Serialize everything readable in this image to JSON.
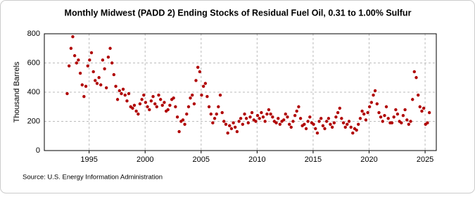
{
  "chart_data": {
    "type": "scatter",
    "title": "Monthly Midwest (PADD 2) Ending Stocks of Residual Fuel Oil, 0.31 to 1.00% Sulfur",
    "y_label": "Thousand Barrels",
    "source": "Source: U.S. Energy Information Administration",
    "color": "#b00000",
    "grid": true,
    "xlim": [
      1991,
      2026
    ],
    "xticks": [
      1995,
      2000,
      2005,
      2010,
      2015,
      2020,
      2025
    ],
    "ylim": [
      0,
      800
    ],
    "yticks": [
      0,
      200,
      400,
      600,
      800
    ],
    "x": [
      1993.04,
      1993.21,
      1993.38,
      1993.54,
      1993.71,
      1993.88,
      1994.04,
      1994.21,
      1994.38,
      1994.54,
      1994.71,
      1994.88,
      1995.04,
      1995.21,
      1995.38,
      1995.54,
      1995.71,
      1995.88,
      1996.04,
      1996.21,
      1996.38,
      1996.54,
      1996.71,
      1996.88,
      1997.04,
      1997.21,
      1997.38,
      1997.54,
      1997.71,
      1997.88,
      1998.04,
      1998.21,
      1998.38,
      1998.54,
      1998.71,
      1998.88,
      1999.04,
      1999.21,
      1999.38,
      1999.54,
      1999.71,
      1999.88,
      2000.04,
      2000.21,
      2000.38,
      2000.54,
      2000.71,
      2000.88,
      2001.04,
      2001.21,
      2001.38,
      2001.54,
      2001.71,
      2001.88,
      2002.04,
      2002.21,
      2002.38,
      2002.54,
      2002.71,
      2002.88,
      2003.04,
      2003.21,
      2003.38,
      2003.54,
      2003.71,
      2003.88,
      2004.04,
      2004.21,
      2004.38,
      2004.54,
      2004.71,
      2004.88,
      2005.04,
      2005.21,
      2005.38,
      2005.54,
      2005.71,
      2005.88,
      2006.04,
      2006.21,
      2006.38,
      2006.54,
      2006.71,
      2006.88,
      2007.04,
      2007.21,
      2007.38,
      2007.54,
      2007.71,
      2007.88,
      2008.04,
      2008.21,
      2008.38,
      2008.54,
      2008.71,
      2008.88,
      2009.04,
      2009.21,
      2009.38,
      2009.54,
      2009.71,
      2009.88,
      2010.04,
      2010.21,
      2010.38,
      2010.54,
      2010.71,
      2010.88,
      2011.04,
      2011.21,
      2011.38,
      2011.54,
      2011.71,
      2011.88,
      2012.04,
      2012.21,
      2012.38,
      2012.54,
      2012.71,
      2012.88,
      2013.04,
      2013.21,
      2013.38,
      2013.54,
      2013.71,
      2013.88,
      2014.04,
      2014.21,
      2014.38,
      2014.54,
      2014.71,
      2014.88,
      2015.04,
      2015.21,
      2015.38,
      2015.54,
      2015.71,
      2015.88,
      2016.04,
      2016.21,
      2016.38,
      2016.54,
      2016.71,
      2016.88,
      2017.04,
      2017.21,
      2017.38,
      2017.54,
      2017.71,
      2017.88,
      2018.04,
      2018.21,
      2018.38,
      2018.54,
      2018.71,
      2018.88,
      2019.04,
      2019.21,
      2019.38,
      2019.54,
      2019.71,
      2019.88,
      2020.04,
      2020.21,
      2020.38,
      2020.54,
      2020.71,
      2020.88,
      2021.04,
      2021.21,
      2021.38,
      2021.54,
      2021.71,
      2021.88,
      2022.04,
      2022.21,
      2022.38,
      2022.54,
      2022.71,
      2022.88,
      2023.04,
      2023.21,
      2023.38,
      2023.54,
      2023.71,
      2023.88,
      2024.04,
      2024.21,
      2024.38,
      2024.54,
      2024.71,
      2024.88,
      2025.04,
      2025.21,
      2025.38
    ],
    "values": [
      390,
      580,
      700,
      780,
      650,
      600,
      620,
      530,
      450,
      370,
      440,
      580,
      620,
      670,
      540,
      480,
      460,
      500,
      450,
      620,
      560,
      430,
      640,
      700,
      600,
      520,
      440,
      350,
      410,
      390,
      420,
      380,
      340,
      390,
      300,
      290,
      310,
      270,
      250,
      320,
      350,
      380,
      330,
      300,
      280,
      340,
      370,
      320,
      300,
      380,
      350,
      310,
      330,
      270,
      280,
      310,
      350,
      360,
      300,
      230,
      130,
      200,
      210,
      180,
      250,
      300,
      360,
      380,
      320,
      480,
      570,
      540,
      380,
      440,
      460,
      370,
      300,
      250,
      190,
      220,
      250,
      300,
      380,
      260,
      200,
      180,
      120,
      170,
      150,
      190,
      160,
      130,
      200,
      220,
      180,
      250,
      220,
      190,
      230,
      260,
      210,
      200,
      240,
      220,
      260,
      230,
      200,
      250,
      280,
      250,
      230,
      200,
      190,
      220,
      180,
      200,
      210,
      250,
      230,
      180,
      160,
      200,
      240,
      270,
      300,
      220,
      170,
      180,
      150,
      200,
      230,
      190,
      180,
      150,
      120,
      200,
      220,
      170,
      150,
      200,
      220,
      180,
      160,
      190,
      230,
      260,
      290,
      220,
      190,
      160,
      180,
      200,
      160,
      120,
      150,
      140,
      180,
      220,
      270,
      250,
      210,
      260,
      300,
      330,
      380,
      410,
      320,
      260,
      230,
      200,
      240,
      300,
      220,
      190,
      190,
      230,
      280,
      250,
      200,
      190,
      240,
      280,
      210,
      180,
      200,
      350,
      540,
      500,
      380,
      300,
      270,
      290,
      180,
      190,
      260
    ]
  }
}
